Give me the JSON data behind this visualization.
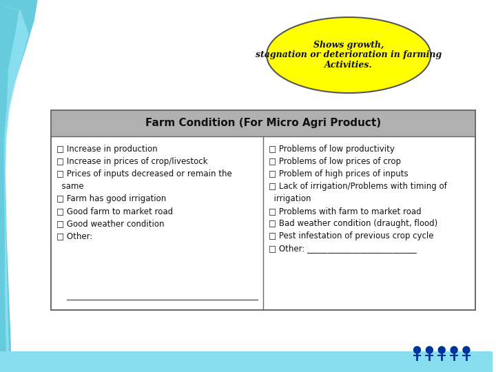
{
  "title_ellipse_text": "Shows growth,\nstagnation or deterioration in farming\nActivities.",
  "table_header": "Farm Condition (For Micro Agri Product)",
  "left_items": [
    "□ Increase in production",
    "□ Increase in prices of crop/livestock",
    "□ Prices of inputs decreased or remain the",
    "  same",
    "□ Farm has good irrigation",
    "□ Good farm to market road",
    "□ Good weather condition",
    "□ Other:"
  ],
  "right_items": [
    "□ Problems of low productivity",
    "□ Problems of low prices of crop",
    "□ Problem of high prices of inputs",
    "□ Lack of irrigation/Problems with timing of",
    "  irrigation",
    "□ Problems with farm to market road",
    "□ Bad weather condition (draught, flood)",
    "□ Pest infestation of previous crop cycle",
    "□ Other: ___________________________"
  ],
  "bg_color": "#ffffff",
  "ellipse_fill": "#ffff00",
  "ellipse_edge": "#555555",
  "header_bg": "#b0b0b0",
  "table_border": "#666666",
  "cyan_color": "#66ccdd",
  "bottom_bar_color": "#88ddee"
}
